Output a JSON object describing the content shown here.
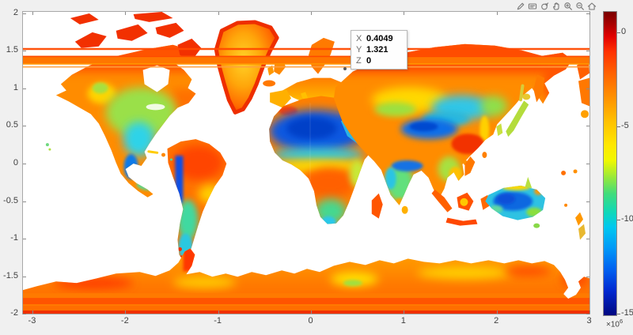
{
  "window": {
    "background": "#f0f0f0",
    "plot_background": "#ffffff"
  },
  "axes_toolbar": {
    "icons": [
      {
        "name": "brush"
      },
      {
        "name": "datatip"
      },
      {
        "name": "rotate-3d"
      },
      {
        "name": "pan"
      },
      {
        "name": "zoom-in"
      },
      {
        "name": "zoom-out"
      },
      {
        "name": "restore-view"
      }
    ]
  },
  "datatip": {
    "rows": [
      {
        "label": "X",
        "value": "0.4049"
      },
      {
        "label": "Y",
        "value": "1.321"
      },
      {
        "label": "Z",
        "value": "0"
      }
    ]
  },
  "chart_data": {
    "type": "heatmap",
    "title": "",
    "xlabel": "",
    "ylabel": "",
    "x_ticks": [
      -3,
      -2,
      -1,
      0,
      1,
      2,
      3
    ],
    "y_ticks": [
      2,
      1.5,
      1,
      0.5,
      0,
      -0.5,
      -1,
      -1.5,
      -2
    ],
    "xlim": [
      -3.106,
      3.012
    ],
    "ylim": [
      -2.011,
      2.022
    ],
    "axis_exponent": {
      "base": "×10",
      "sup": "6"
    },
    "grid": false,
    "colormap": "jet",
    "ocean_color": "#ffffff",
    "colorbar": {
      "ticks": [
        0,
        -5,
        -10,
        -15
      ],
      "value_top": 1.1,
      "value_bottom": -15.05,
      "exponent": {
        "base": "×10",
        "sup": "6"
      },
      "stops": [
        {
          "pos": 0.0,
          "color": "#7a0000"
        },
        {
          "pos": 0.04,
          "color": "#a80000"
        },
        {
          "pos": 0.08,
          "color": "#e00000"
        },
        {
          "pos": 0.13,
          "color": "#ff3000"
        },
        {
          "pos": 0.2,
          "color": "#ff6000"
        },
        {
          "pos": 0.28,
          "color": "#ff9000"
        },
        {
          "pos": 0.36,
          "color": "#ffc000"
        },
        {
          "pos": 0.44,
          "color": "#ffe800"
        },
        {
          "pos": 0.49,
          "color": "#f0f800"
        },
        {
          "pos": 0.55,
          "color": "#90e840"
        },
        {
          "pos": 0.6,
          "color": "#40dc7c"
        },
        {
          "pos": 0.66,
          "color": "#10d8b8"
        },
        {
          "pos": 0.71,
          "color": "#00c8f0"
        },
        {
          "pos": 0.78,
          "color": "#0098f8"
        },
        {
          "pos": 0.85,
          "color": "#0060f0"
        },
        {
          "pos": 0.92,
          "color": "#0028d0"
        },
        {
          "pos": 1.0,
          "color": "#000880"
        }
      ]
    },
    "selected_point": {
      "x": 0.4049,
      "y": 1.321,
      "z": 0
    },
    "description": "World map raster plotted with a jet colormap in projected coordinates (x and y in units of 1e6). Oceans are white (no data). Continent interiors span roughly z=0 (dark red/orange) to strongly negative values (blue), e.g. blue Sahara, Tibet, central Australia; orange/red Siberia, Amazon, Antarctica band. Horizontal orange artifact bands cross the full map near y=1.5e6/1.35e6 and near the bottom. A data tip marks the point (0.4049, 1.321) with Z = 0."
  }
}
